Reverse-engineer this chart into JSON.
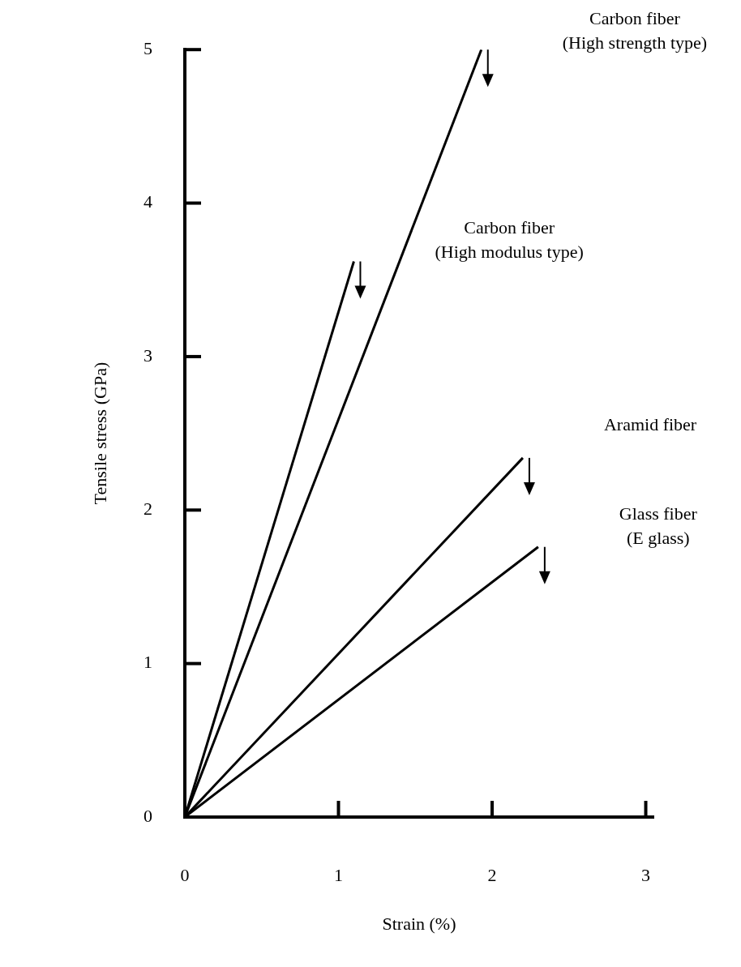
{
  "chart_data": {
    "type": "line",
    "xlabel": "Strain (%)",
    "ylabel": "Tensile stress (GPa)",
    "xlim": [
      0,
      3.05
    ],
    "xticks": [
      0,
      1,
      2,
      3
    ],
    "ylim": [
      0,
      5
    ],
    "yticks": [
      0,
      1,
      2,
      3,
      4,
      5
    ],
    "legend": false,
    "marker": "none",
    "line_style": "solid",
    "series": [
      {
        "name": "Carbon fiber\n(High modulus type)",
        "color": "#000000",
        "x": [
          0,
          1.1
        ],
        "values": [
          0,
          3.62
        ]
      },
      {
        "name": "Carbon fiber\n(High strength type)",
        "color": "#000000",
        "x": [
          0,
          1.93
        ],
        "values": [
          0,
          5
        ]
      },
      {
        "name": "Aramid fiber",
        "color": "#000000",
        "x": [
          0,
          2.2
        ],
        "values": [
          0,
          2.34
        ]
      },
      {
        "name": "Glass fiber\n(E glass)",
        "color": "#000000",
        "x": [
          0,
          2.3
        ],
        "values": [
          0,
          1.76
        ]
      }
    ]
  }
}
